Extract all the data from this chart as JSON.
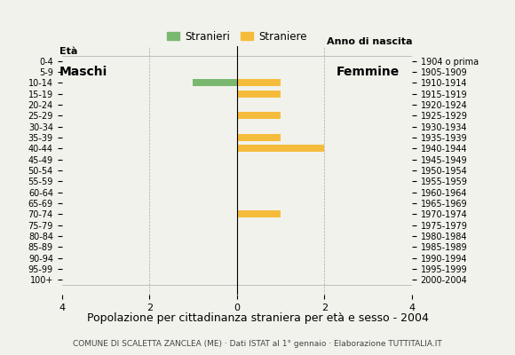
{
  "age_groups": [
    "0-4",
    "5-9",
    "10-14",
    "15-19",
    "20-24",
    "25-29",
    "30-34",
    "35-39",
    "40-44",
    "45-49",
    "50-54",
    "55-59",
    "60-64",
    "65-69",
    "70-74",
    "75-79",
    "80-84",
    "85-89",
    "90-94",
    "95-99",
    "100+"
  ],
  "birth_years": [
    "2000-2004",
    "1995-1999",
    "1990-1994",
    "1985-1989",
    "1980-1984",
    "1975-1979",
    "1970-1974",
    "1965-1969",
    "1960-1964",
    "1955-1959",
    "1950-1954",
    "1945-1949",
    "1940-1944",
    "1935-1939",
    "1930-1934",
    "1925-1929",
    "1920-1924",
    "1915-1919",
    "1910-1914",
    "1905-1909",
    "1904 o prima"
  ],
  "males": [
    0,
    0,
    1,
    0,
    0,
    0,
    0,
    0,
    0,
    0,
    0,
    0,
    0,
    0,
    0,
    0,
    0,
    0,
    0,
    0,
    0
  ],
  "females": [
    0,
    0,
    1,
    1,
    0,
    1,
    0,
    1,
    2,
    0,
    0,
    0,
    0,
    0,
    1,
    0,
    0,
    0,
    0,
    0,
    0
  ],
  "male_color": "#7ab870",
  "female_color": "#f5bc3c",
  "background_color": "#f2f2ec",
  "title": "Popolazione per cittadinanza straniera per età e sesso - 2004",
  "subtitle": "COMUNE DI SCALETTA ZANCLEA (ME) · Dati ISTAT al 1° gennaio · Elaborazione TUTTITALIA.IT",
  "legend_male": "Stranieri",
  "legend_female": "Straniere",
  "xlim": 4,
  "ylabel_left": "Età",
  "ylabel_right": "Anno di nascita",
  "label_maschi": "Maschi",
  "label_femmine": "Femmine"
}
